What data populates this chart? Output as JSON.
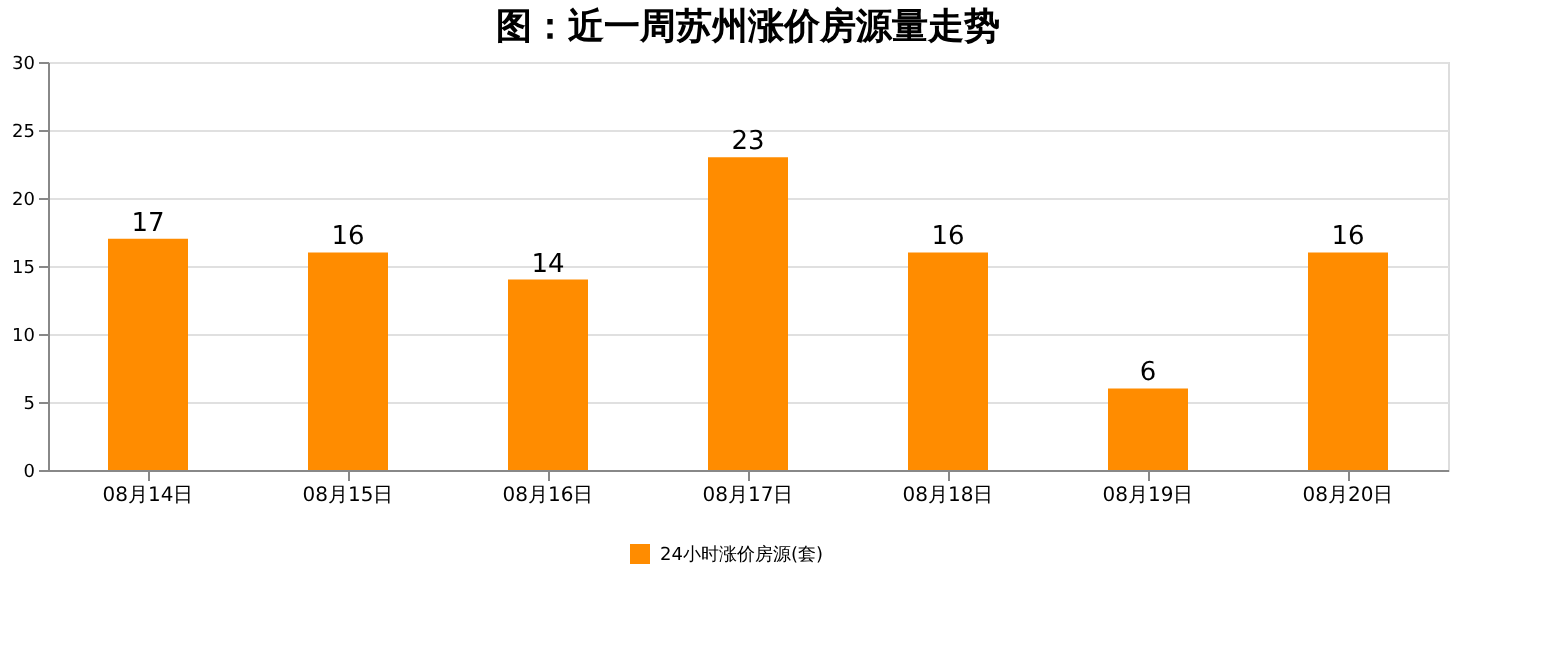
{
  "chart_data": {
    "type": "bar",
    "title": "图：近一周苏州涨价房源量走势",
    "categories": [
      "08月14日",
      "08月15日",
      "08月16日",
      "08月17日",
      "08月18日",
      "08月19日",
      "08月20日"
    ],
    "series": [
      {
        "name": "24小时涨价房源(套)",
        "color": "#ff8c00",
        "values": [
          17,
          16,
          14,
          23,
          16,
          6,
          16
        ]
      }
    ],
    "ylim": [
      0,
      30
    ],
    "yticks": [
      0,
      5,
      10,
      15,
      20,
      25,
      30
    ],
    "grid": "y",
    "legend": "bottom",
    "data_labels": true
  }
}
